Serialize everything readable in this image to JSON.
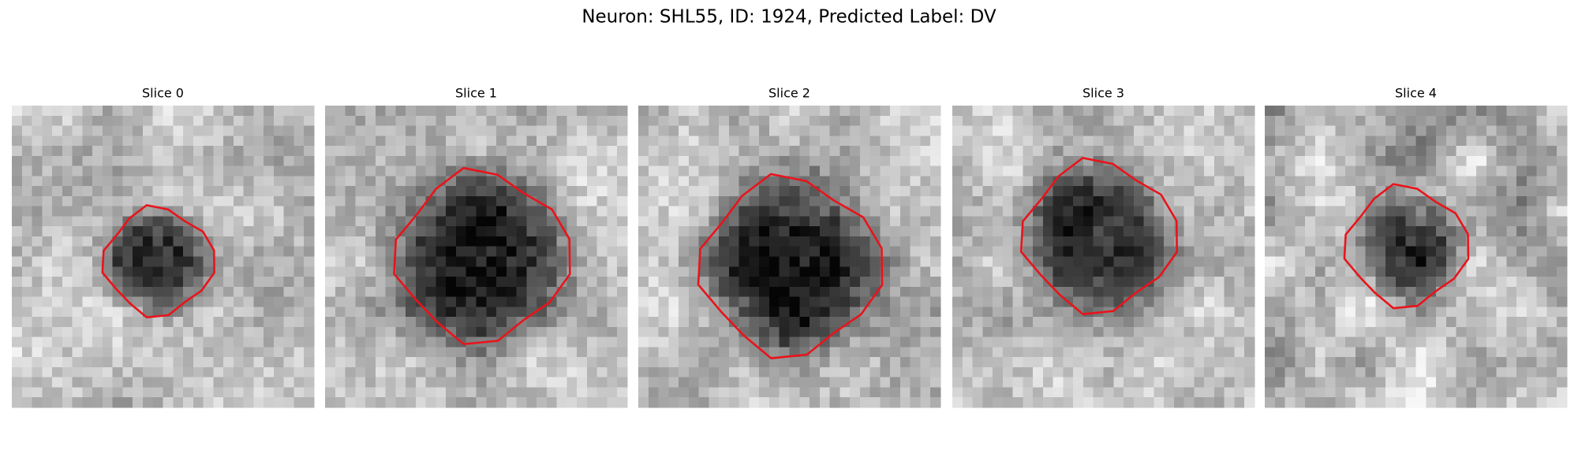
{
  "title": "Neuron: SHL55, ID: 1924, Predicted Label: DV",
  "panels": [
    {
      "title": "Slice 0"
    },
    {
      "title": "Slice 1"
    },
    {
      "title": "Slice 2"
    },
    {
      "title": "Slice 3"
    },
    {
      "title": "Slice 4"
    }
  ]
}
